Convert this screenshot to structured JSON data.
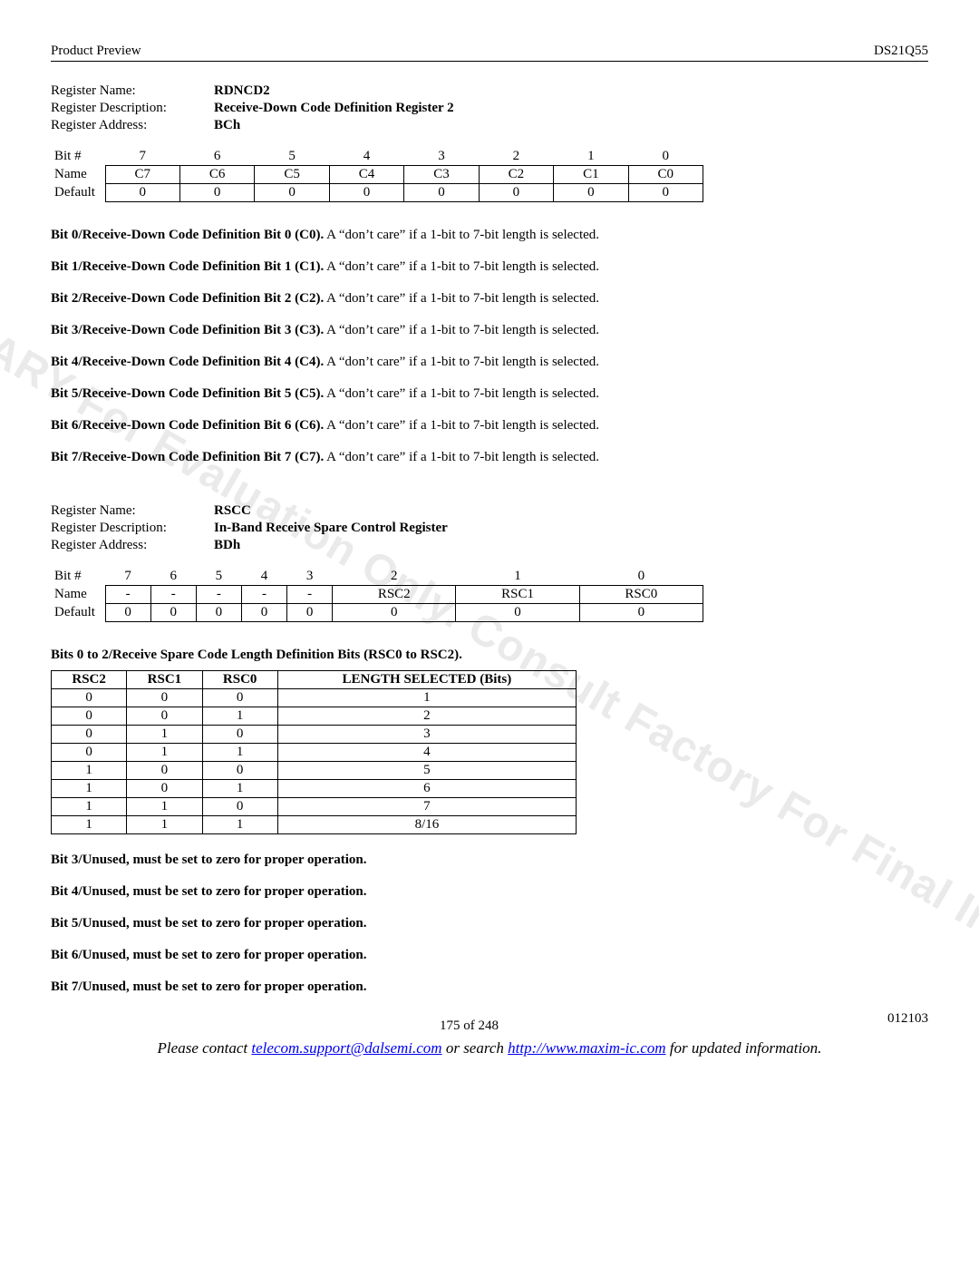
{
  "header": {
    "left": "Product Preview",
    "right": "DS21Q55"
  },
  "watermark": "PRELIMINARY For Evaluation Only. Consult Factory For Final Information",
  "reg1": {
    "name_label": "Register Name:",
    "name": "RDNCD2",
    "desc_label": "Register Description:",
    "desc": "Receive-Down Code Definition Register 2",
    "addr_label": "Register Address:",
    "addr": "BCh",
    "bit_table": {
      "row_labels": [
        "Bit #",
        "Name",
        "Default"
      ],
      "bit_nums": [
        "7",
        "6",
        "5",
        "4",
        "3",
        "2",
        "1",
        "0"
      ],
      "names": [
        "C7",
        "C6",
        "C5",
        "C4",
        "C3",
        "C2",
        "C1",
        "C0"
      ],
      "defaults": [
        "0",
        "0",
        "0",
        "0",
        "0",
        "0",
        "0",
        "0"
      ]
    },
    "bits": [
      {
        "b": "Bit 0/Receive-Down Code Definition Bit 0 (C0).",
        "t": " A “don’t care” if a 1-bit to 7-bit length is selected."
      },
      {
        "b": "Bit 1/Receive-Down Code Definition Bit 1 (C1).",
        "t": " A “don’t care” if a 1-bit to 7-bit length is selected."
      },
      {
        "b": "Bit 2/Receive-Down Code Definition Bit 2 (C2).",
        "t": " A “don’t care” if a 1-bit to 7-bit length is selected."
      },
      {
        "b": "Bit 3/Receive-Down Code Definition Bit 3 (C3).",
        "t": " A “don’t care” if a 1-bit to 7-bit length is selected."
      },
      {
        "b": "Bit 4/Receive-Down Code Definition Bit 4 (C4).",
        "t": " A “don’t care” if a 1-bit to 7-bit length is selected."
      },
      {
        "b": "Bit 5/Receive-Down Code Definition Bit 5 (C5).",
        "t": " A “don’t care” if a 1-bit to 7-bit length is selected."
      },
      {
        "b": "Bit 6/Receive-Down Code Definition Bit 6 (C6).",
        "t": " A “don’t care” if a 1-bit to 7-bit length is selected."
      },
      {
        "b": "Bit 7/Receive-Down Code Definition Bit 7 (C7).",
        "t": " A “don’t care” if a 1-bit to 7-bit length is selected."
      }
    ]
  },
  "reg2": {
    "name_label": "Register Name:",
    "name": "RSCC",
    "desc_label": "Register Description:",
    "desc": "In-Band Receive Spare Control Register",
    "addr_label": "Register Address:",
    "addr": "BDh",
    "bit_table": {
      "row_labels": [
        "Bit #",
        "Name",
        "Default"
      ],
      "bit_nums": [
        "7",
        "6",
        "5",
        "4",
        "3",
        "2",
        "1",
        "0"
      ],
      "names": [
        "-",
        "-",
        "-",
        "-",
        "-",
        "RSC2",
        "RSC1",
        "RSC0"
      ],
      "defaults": [
        "0",
        "0",
        "0",
        "0",
        "0",
        "0",
        "0",
        "0"
      ]
    },
    "rsc_caption": "Bits 0 to 2/Receive Spare Code Length Definition Bits (RSC0 to RSC2).",
    "rsc_table": {
      "headers": [
        "RSC2",
        "RSC1",
        "RSC0",
        "LENGTH SELECTED (Bits)"
      ],
      "rows": [
        [
          "0",
          "0",
          "0",
          "1"
        ],
        [
          "0",
          "0",
          "1",
          "2"
        ],
        [
          "0",
          "1",
          "0",
          "3"
        ],
        [
          "0",
          "1",
          "1",
          "4"
        ],
        [
          "1",
          "0",
          "0",
          "5"
        ],
        [
          "1",
          "0",
          "1",
          "6"
        ],
        [
          "1",
          "1",
          "0",
          "7"
        ],
        [
          "1",
          "1",
          "1",
          "8/16"
        ]
      ]
    },
    "unused": [
      "Bit 3/Unused, must be set to zero for proper operation.",
      "Bit 4/Unused, must be set to zero for proper operation.",
      "Bit 5/Unused, must be set to zero for proper operation.",
      "Bit 6/Unused, must be set to zero for proper operation.",
      "Bit 7/Unused, must be set to zero for proper operation."
    ]
  },
  "footer": {
    "page": "175 of 248",
    "code": "012103",
    "contact_pre": "Please contact ",
    "email": "telecom.support@dalsemi.com",
    "contact_mid": " or search ",
    "url": "http://www.maxim-ic.com",
    "contact_post": " for updated information."
  }
}
